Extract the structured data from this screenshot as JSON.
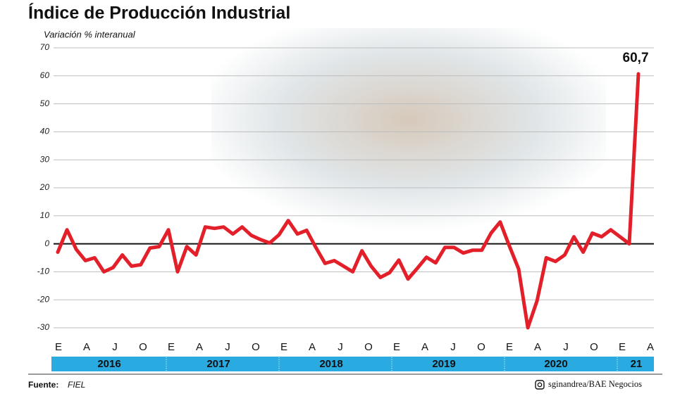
{
  "chart_data": {
    "type": "line",
    "title": "Índice de Producción Industrial",
    "subtitle": "Variación % interanual",
    "ylim": [
      -30,
      70
    ],
    "yticks": [
      -30,
      -20,
      -10,
      0,
      10,
      20,
      30,
      40,
      50,
      60,
      70
    ],
    "grid": true,
    "series": [
      {
        "color": "#e3202a",
        "values": [
          -3,
          5,
          -2,
          -6,
          -5,
          -10,
          -8.5,
          -4,
          -8,
          -7.5,
          -1.5,
          -1,
          5,
          -10,
          -1,
          -4,
          6,
          5.5,
          6,
          3.5,
          6,
          3,
          1.5,
          0.3,
          3.2,
          8.3,
          3.5,
          4.8,
          -1.3,
          -7,
          -6,
          -8,
          -10,
          -2.5,
          -8,
          -12,
          -10.3,
          -5.8,
          -12.6,
          -8.8,
          -4.8,
          -6.8,
          -1.3,
          -1.3,
          -3.3,
          -2.3,
          -2.3,
          3.8,
          7.8,
          -0.8,
          -9,
          -30,
          -20.3,
          -5,
          -6.3,
          -4,
          2.5,
          -3,
          3.8,
          2.5,
          5,
          2.5,
          0,
          60.7
        ],
        "value_labels": [
          null,
          null,
          null,
          null,
          null,
          null,
          null,
          null,
          null,
          null,
          null,
          null,
          null,
          null,
          null,
          null,
          null,
          null,
          null,
          null,
          null,
          null,
          null,
          null,
          null,
          null,
          null,
          null,
          null,
          null,
          null,
          null,
          null,
          null,
          null,
          null,
          null,
          null,
          null,
          null,
          null,
          null,
          null,
          null,
          null,
          null,
          null,
          null,
          null,
          null,
          null,
          null,
          null,
          null,
          null,
          null,
          null,
          null,
          null,
          null,
          null,
          null,
          null,
          "60,7"
        ]
      }
    ],
    "month_labels": [
      "E",
      "A",
      "J",
      "O",
      "E",
      "A",
      "J",
      "O",
      "E",
      "A",
      "J",
      "O",
      "E",
      "A",
      "J",
      "O",
      "E",
      "A",
      "J",
      "O",
      "E",
      "A"
    ],
    "years": [
      "2016",
      "2017",
      "2018",
      "2019",
      "2020",
      "21"
    ],
    "source_label": "Fuente:",
    "source": "FIEL",
    "credit": "sginandrea/BAE Negocios"
  }
}
